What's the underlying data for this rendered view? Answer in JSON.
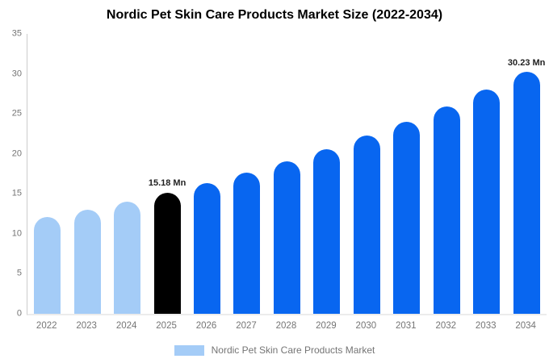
{
  "chart_data": {
    "type": "bar",
    "title": "Nordic Pet Skin Care Products Market Size (2022-2034)",
    "unit": "Mn",
    "categories": [
      "2022",
      "2023",
      "2024",
      "2025",
      "2026",
      "2027",
      "2028",
      "2029",
      "2030",
      "2031",
      "2032",
      "2033",
      "2034"
    ],
    "values": [
      12.07,
      13.03,
      14.06,
      15.18,
      16.39,
      17.69,
      19.1,
      20.62,
      22.26,
      24.03,
      25.94,
      28.0,
      30.23
    ],
    "bar_colors": [
      "#A4CCF7",
      "#A4CCF7",
      "#A4CCF7",
      "#000000",
      "#0866F0",
      "#0866F0",
      "#0866F0",
      "#0866F0",
      "#0866F0",
      "#0866F0",
      "#0866F0",
      "#0866F0",
      "#0866F0"
    ],
    "annotations": [
      {
        "category": "2025",
        "text": "15.18 Mn"
      },
      {
        "category": "2034",
        "text": "30.23 Mn"
      }
    ],
    "ylim": [
      0,
      35
    ],
    "yticks": [
      "0",
      "5",
      "10",
      "15",
      "20",
      "25",
      "30",
      "35"
    ],
    "grid": false,
    "legend": {
      "label": "Nordic Pet Skin Care Products Market",
      "color": "#A4CCF7",
      "position": "bottom"
    },
    "colors": {
      "historical_bar": "#A4CCF7",
      "highlight_bar": "#000000",
      "forecast_bar": "#0866F0",
      "axis_text": "#757575",
      "annotation_text": "#1f1f1f",
      "title_text": "#000000",
      "y_axis_line": "#cccccc",
      "baseline": "#ececec"
    }
  }
}
